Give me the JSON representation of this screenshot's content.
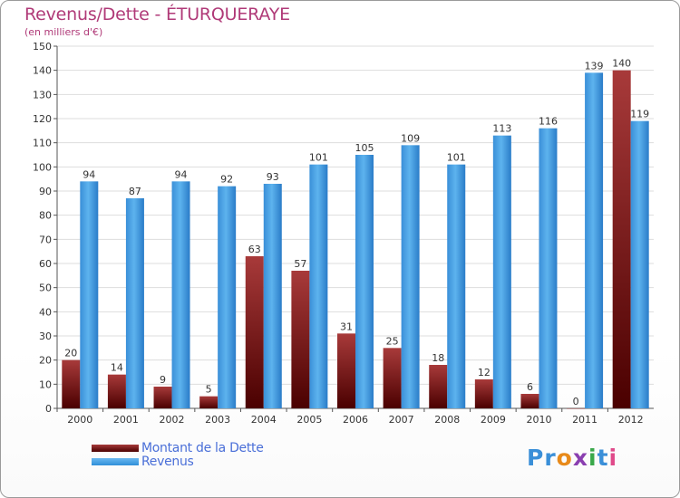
{
  "title": "Revenus/Dette - ÉTURQUERAYE",
  "subtitle": "(en milliers d'€)",
  "legend": {
    "debt_label": "Montant de la Dette",
    "revenue_label": "Revenus"
  },
  "logo": {
    "text": "Proxiti",
    "letters": [
      "P",
      "r",
      "o",
      "x",
      "i",
      "t",
      "i"
    ]
  },
  "colors": {
    "title": "#b03a78",
    "debt": "#8b1a1a",
    "revenue": "#3a9ae0",
    "legend_text": "#4a6fd8",
    "grid": "#dddddd"
  },
  "chart_data": {
    "type": "bar",
    "title": "Revenus/Dette - ÉTURQUERAYE",
    "ylabel": "(en milliers d'€)",
    "xlabel": "",
    "categories": [
      "2000",
      "2001",
      "2002",
      "2003",
      "2004",
      "2005",
      "2006",
      "2007",
      "2008",
      "2009",
      "2010",
      "2011",
      "2012"
    ],
    "series": [
      {
        "name": "Montant de la Dette",
        "values": [
          20,
          14,
          9,
          5,
          63,
          57,
          31,
          25,
          18,
          12,
          6,
          0,
          140
        ]
      },
      {
        "name": "Revenus",
        "values": [
          94,
          87,
          94,
          92,
          93,
          101,
          105,
          109,
          101,
          113,
          116,
          139,
          119
        ]
      }
    ],
    "ylim": [
      0,
      150
    ],
    "yticks": [
      0,
      10,
      20,
      30,
      40,
      50,
      60,
      70,
      80,
      90,
      100,
      110,
      120,
      130,
      140,
      150
    ],
    "grid": true
  }
}
